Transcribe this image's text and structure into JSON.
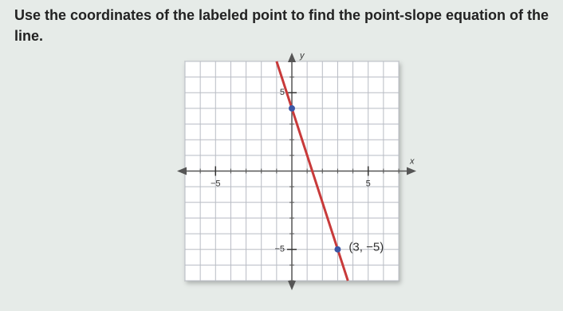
{
  "question": "Use the coordinates of the labeled point to find the point-slope equation of the line.",
  "chart_data": {
    "type": "line",
    "x_label": "x",
    "y_label": "y",
    "xlim": [
      -7,
      7
    ],
    "ylim": [
      -7,
      7
    ],
    "xticks": [
      {
        "value": -5,
        "label": "−5"
      },
      5
    ],
    "yticks": [
      {
        "value": -5,
        "label": "−5"
      },
      5
    ],
    "minor_ticks": [
      -7,
      -6,
      -5,
      -4,
      -3,
      -2,
      -1,
      0,
      1,
      2,
      3,
      4,
      5,
      6,
      7
    ],
    "grid": true,
    "series": [
      {
        "type": "line",
        "color": "#c83a3a",
        "x": [
          -1,
          3.67
        ],
        "values": [
          7,
          -7
        ]
      },
      {
        "type": "scatter",
        "color": "#3b57a6",
        "x": [
          0,
          3
        ],
        "values": [
          4,
          -5
        ]
      }
    ],
    "annotations": [
      {
        "text": "(3, −5)",
        "x": 3,
        "y": -5
      }
    ]
  }
}
